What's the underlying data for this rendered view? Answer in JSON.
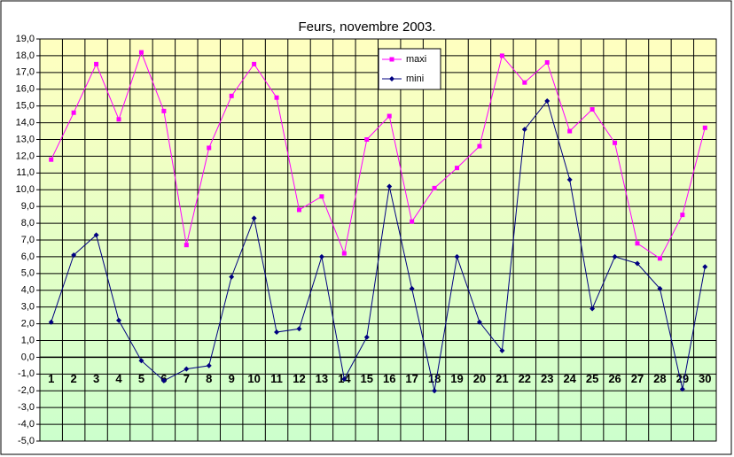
{
  "chart_data": {
    "type": "line",
    "title": "Feurs, novembre 2003.",
    "categories": [
      "1",
      "2",
      "3",
      "4",
      "5",
      "6",
      "7",
      "8",
      "9",
      "10",
      "11",
      "12",
      "13",
      "14",
      "15",
      "16",
      "17",
      "18",
      "19",
      "20",
      "21",
      "22",
      "23",
      "24",
      "25",
      "26",
      "27",
      "28",
      "29",
      "30"
    ],
    "series": [
      {
        "name": "maxi",
        "color": "#ff00ff",
        "marker": "square",
        "values": [
          11.8,
          14.6,
          17.5,
          14.2,
          18.2,
          14.7,
          6.7,
          12.5,
          15.6,
          17.5,
          15.5,
          8.8,
          9.6,
          6.2,
          13.0,
          14.4,
          8.1,
          10.1,
          11.3,
          12.6,
          18.0,
          16.4,
          17.6,
          13.5,
          14.8,
          12.8,
          6.8,
          5.9,
          8.5,
          13.7
        ]
      },
      {
        "name": "mini",
        "color": "#000080",
        "marker": "diamond",
        "values": [
          2.1,
          6.1,
          7.3,
          2.2,
          -0.2,
          -1.4,
          -0.7,
          -0.5,
          4.8,
          8.3,
          1.5,
          1.7,
          6.0,
          -1.3,
          1.2,
          10.2,
          4.1,
          -2.0,
          6.0,
          2.1,
          0.4,
          13.6,
          15.3,
          10.6,
          2.9,
          6.0,
          5.6,
          4.1,
          -1.9,
          5.4
        ]
      }
    ],
    "ylim": [
      -5,
      19
    ],
    "yticks": [
      {
        "value": -5,
        "label": "-5,0"
      },
      {
        "value": -4,
        "label": "-4,0"
      },
      {
        "value": -3,
        "label": "-3,0"
      },
      {
        "value": -2,
        "label": "-2,0"
      },
      {
        "value": -1,
        "label": "-1,0"
      },
      {
        "value": 0,
        "label": "0,0"
      },
      {
        "value": 1,
        "label": "1,0"
      },
      {
        "value": 2,
        "label": "2,0"
      },
      {
        "value": 3,
        "label": "3,0"
      },
      {
        "value": 4,
        "label": "4,0"
      },
      {
        "value": 5,
        "label": "5,0"
      },
      {
        "value": 6,
        "label": "6,0"
      },
      {
        "value": 7,
        "label": "7,0"
      },
      {
        "value": 8,
        "label": "8,0"
      },
      {
        "value": 9,
        "label": "9,0"
      },
      {
        "value": 10,
        "label": "10,0"
      },
      {
        "value": 11,
        "label": "11,0"
      },
      {
        "value": 12,
        "label": "12,0"
      },
      {
        "value": 13,
        "label": "13,0"
      },
      {
        "value": 14,
        "label": "14,0"
      },
      {
        "value": 15,
        "label": "15,0"
      },
      {
        "value": 16,
        "label": "16,0"
      },
      {
        "value": 17,
        "label": "17,0"
      },
      {
        "value": 18,
        "label": "18,0"
      },
      {
        "value": 19,
        "label": "19,0"
      }
    ],
    "grid": true,
    "legend": "top"
  }
}
